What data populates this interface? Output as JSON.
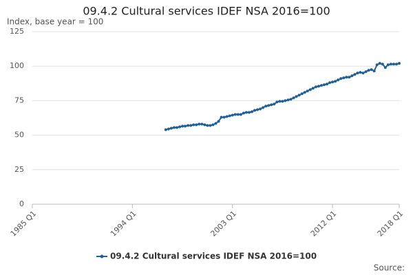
{
  "chart_data": {
    "type": "line",
    "title": "09.4.2 Cultural services IDEF NSA 2016=100",
    "y_label": "Index, base year = 100",
    "source": "Source:",
    "categories": [
      "1985 Q1",
      null,
      null,
      null,
      null,
      null,
      null,
      null,
      null,
      null,
      null,
      null,
      null,
      null,
      null,
      null,
      null,
      null,
      null,
      null,
      null,
      null,
      null,
      null,
      null,
      null,
      null,
      null,
      null,
      null,
      null,
      null,
      null,
      null,
      null,
      null,
      "1994 Q1",
      null,
      null,
      null,
      null,
      null,
      null,
      null,
      null,
      null,
      null,
      null,
      null,
      null,
      null,
      null,
      null,
      null,
      null,
      null,
      null,
      null,
      null,
      null,
      null,
      null,
      null,
      null,
      null,
      null,
      null,
      null,
      null,
      null,
      null,
      null,
      "2003 Q1",
      null,
      null,
      null,
      null,
      null,
      null,
      null,
      null,
      null,
      null,
      null,
      null,
      null,
      null,
      null,
      null,
      null,
      null,
      null,
      null,
      null,
      null,
      null,
      null,
      null,
      null,
      null,
      null,
      null,
      null,
      null,
      null,
      null,
      null,
      null,
      "2012 Q1",
      null,
      null,
      null,
      null,
      null,
      null,
      null,
      null,
      null,
      null,
      null,
      null,
      null,
      null,
      null,
      null,
      null,
      null,
      null,
      null,
      null,
      null,
      null,
      "2018 Q1"
    ],
    "series": [
      {
        "name": "09.4.2 Cultural services IDEF NSA 2016=100",
        "color": "#206095",
        "values": [
          null,
          null,
          null,
          null,
          null,
          null,
          null,
          null,
          null,
          null,
          null,
          null,
          null,
          null,
          null,
          null,
          null,
          null,
          null,
          null,
          null,
          null,
          null,
          null,
          null,
          null,
          null,
          null,
          null,
          null,
          null,
          null,
          null,
          null,
          null,
          null,
          null,
          null,
          null,
          null,
          null,
          null,
          null,
          null,
          null,
          null,
          null,
          null,
          54,
          54.5,
          55,
          55.5,
          55.5,
          56,
          56.5,
          56.5,
          57,
          57,
          57.5,
          57.5,
          58,
          58,
          57.5,
          57,
          57,
          57.5,
          58.5,
          60,
          63,
          63,
          63.5,
          64,
          64.5,
          65,
          65,
          65,
          66,
          66.5,
          66.5,
          67,
          68,
          68.5,
          69,
          70,
          71,
          71.5,
          72,
          72.5,
          74,
          74.5,
          74.5,
          75,
          75.5,
          76,
          77,
          78,
          79,
          80,
          81,
          82,
          83,
          84,
          85,
          85.5,
          86,
          86.5,
          87,
          88,
          88.5,
          89,
          90,
          91,
          91.5,
          92,
          92,
          93,
          94,
          95,
          95.5,
          95,
          96,
          97,
          97.5,
          96.5,
          101,
          102,
          101.5,
          99,
          101,
          101.5,
          101.5,
          101.5,
          102
        ]
      }
    ],
    "ylim": [
      0,
      125
    ],
    "yticks": [
      0,
      25,
      50,
      75,
      100,
      125
    ],
    "grid": true
  }
}
